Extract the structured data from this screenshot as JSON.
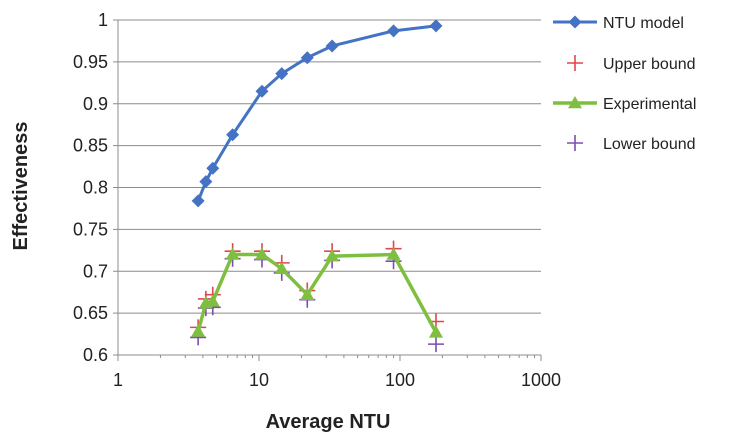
{
  "chart_data": {
    "type": "line",
    "xlabel": "Average NTU",
    "ylabel": "Effectiveness",
    "xscale": "log",
    "xlim": [
      1,
      1000
    ],
    "ylim": [
      0.6,
      1.0
    ],
    "xticks": [
      1,
      10,
      100,
      1000
    ],
    "xtick_labels": [
      "1",
      "10",
      "100",
      "1000"
    ],
    "yticks": [
      0.6,
      0.65,
      0.7,
      0.75,
      0.8,
      0.85,
      0.9,
      0.95,
      1.0
    ],
    "ytick_labels": [
      "0.6",
      "0.65",
      "0.7",
      "0.75",
      "0.8",
      "0.85",
      "0.9",
      "0.95",
      "1"
    ],
    "grid": "horizontal",
    "legend_position": "right",
    "series": [
      {
        "name": "NTU model",
        "color": "#4472c4",
        "marker": "diamond",
        "line": true,
        "x": [
          3.7,
          4.2,
          4.7,
          6.5,
          10.5,
          14.5,
          22,
          33,
          90,
          180
        ],
        "y": [
          0.784,
          0.807,
          0.823,
          0.863,
          0.915,
          0.936,
          0.955,
          0.969,
          0.987,
          0.993
        ]
      },
      {
        "name": "Upper bound",
        "color": "#e0474c",
        "marker": "plus",
        "line": false,
        "x": [
          3.7,
          4.2,
          4.7,
          6.5,
          10.5,
          14.5,
          22,
          33,
          90,
          180
        ],
        "y": [
          0.633,
          0.667,
          0.672,
          0.724,
          0.724,
          0.71,
          0.677,
          0.724,
          0.727,
          0.64
        ]
      },
      {
        "name": "Experimental",
        "color": "#7fbf3f",
        "marker": "triangle",
        "line": true,
        "x": [
          3.7,
          4.2,
          4.7,
          6.5,
          10.5,
          14.5,
          22,
          33,
          90,
          180
        ],
        "y": [
          0.628,
          0.662,
          0.664,
          0.72,
          0.72,
          0.703,
          0.672,
          0.718,
          0.72,
          0.627
        ]
      },
      {
        "name": "Lower bound",
        "color": "#7b4fb0",
        "marker": "plus",
        "line": false,
        "x": [
          3.7,
          4.2,
          4.7,
          6.5,
          10.5,
          14.5,
          22,
          33,
          90,
          180
        ],
        "y": [
          0.621,
          0.656,
          0.657,
          0.715,
          0.714,
          0.698,
          0.666,
          0.713,
          0.712,
          0.613
        ]
      }
    ]
  }
}
